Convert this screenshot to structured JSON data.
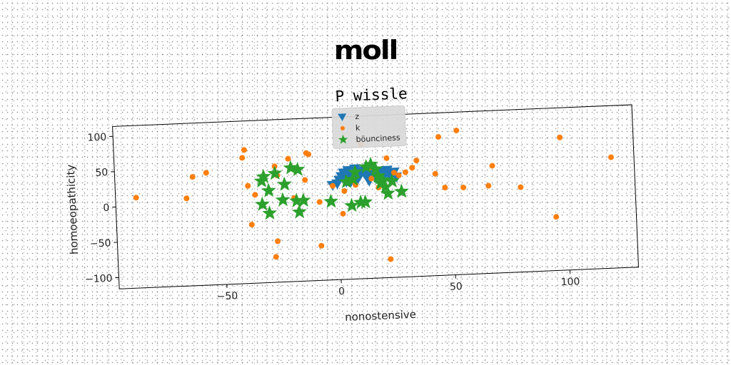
{
  "suptitle": "moll",
  "chart_data": {
    "type": "scatter",
    "title": "P wissle",
    "xlabel": "nonostensive",
    "ylabel": "homoeopathicity",
    "xlim": [
      -97,
      130
    ],
    "ylim": [
      -116,
      114
    ],
    "xticks": [
      -50,
      0,
      50,
      100
    ],
    "yticks": [
      -100,
      -50,
      0,
      50,
      100
    ],
    "xtick_labels": [
      "−50",
      "0",
      "50",
      "100"
    ],
    "ytick_labels": [
      "−100",
      "−50",
      "0",
      "50",
      "100"
    ],
    "grid": false,
    "legend_position": "upper center",
    "series": [
      {
        "name": "z",
        "marker": "triangle-down",
        "color": "#1f77b4",
        "points": [
          [
            -2,
            18
          ],
          [
            0,
            20
          ],
          [
            1,
            25
          ],
          [
            2,
            30
          ],
          [
            3,
            35
          ],
          [
            4,
            22
          ],
          [
            5,
            38
          ],
          [
            6,
            28
          ],
          [
            7,
            32
          ],
          [
            8,
            40
          ],
          [
            9,
            25
          ],
          [
            10,
            30
          ],
          [
            11,
            35
          ],
          [
            12,
            37
          ],
          [
            13,
            28
          ],
          [
            14,
            33
          ],
          [
            15,
            38
          ],
          [
            16,
            30
          ],
          [
            17,
            25
          ],
          [
            18,
            35
          ],
          [
            19,
            28
          ],
          [
            20,
            32
          ],
          [
            21,
            30
          ],
          [
            22,
            36
          ],
          [
            23,
            28
          ],
          [
            24,
            30
          ],
          [
            25,
            33
          ],
          [
            26,
            26
          ],
          [
            6,
            22
          ],
          [
            3,
            26
          ],
          [
            14,
            22
          ],
          [
            19,
            34
          ]
        ]
      },
      {
        "name": "k",
        "marker": "circle",
        "color": "#ff7f0e",
        "points": [
          [
            -88,
            12
          ],
          [
            -66,
            8
          ],
          [
            -63,
            38
          ],
          [
            -57,
            43
          ],
          [
            -41,
            62
          ],
          [
            -40,
            73
          ],
          [
            -39,
            22
          ],
          [
            -38,
            -33
          ],
          [
            -36,
            9
          ],
          [
            -27,
            -58
          ],
          [
            -28,
            -80
          ],
          [
            -27,
            48
          ],
          [
            -26,
            35
          ],
          [
            -21,
            58
          ],
          [
            -19,
            2
          ],
          [
            -15,
            -1
          ],
          [
            -13,
            65
          ],
          [
            -12,
            63
          ],
          [
            -14,
            27
          ],
          [
            -8,
            -67
          ],
          [
            -8,
            -5
          ],
          [
            -2,
            17
          ],
          [
            2,
            -23
          ],
          [
            3,
            9
          ],
          [
            7,
            23
          ],
          [
            8,
            17
          ],
          [
            11,
            74
          ],
          [
            13,
            42
          ],
          [
            14,
            43
          ],
          [
            15,
            41
          ],
          [
            22,
            -90
          ],
          [
            22,
            53
          ],
          [
            25,
            32
          ],
          [
            27,
            28
          ],
          [
            30,
            32
          ],
          [
            33,
            38
          ],
          [
            35,
            48
          ],
          [
            43,
            28
          ],
          [
            45,
            80
          ],
          [
            47,
            8
          ],
          [
            53,
            88
          ],
          [
            55,
            7
          ],
          [
            66,
            8
          ],
          [
            68,
            36
          ],
          [
            80,
            4
          ],
          [
            95,
            -40
          ],
          [
            98,
            72
          ],
          [
            120,
            41
          ],
          [
            15,
            25
          ],
          [
            18,
            12
          ]
        ]
      },
      {
        "name": "böunciness",
        "marker": "star",
        "color": "#2ca02c",
        "points": [
          [
            -33,
            28
          ],
          [
            -32,
            34
          ],
          [
            -30,
            14
          ],
          [
            -27,
            38
          ],
          [
            -23,
            22
          ],
          [
            -20,
            45
          ],
          [
            -17,
            42
          ],
          [
            -15,
            -2
          ],
          [
            -18,
            -2
          ],
          [
            -24,
            0
          ],
          [
            -33,
            -5
          ],
          [
            -30,
            -18
          ],
          [
            -17,
            -18
          ],
          [
            -3,
            -5
          ],
          [
            4,
            22
          ],
          [
            7,
            25
          ],
          [
            8,
            35
          ],
          [
            10,
            -8
          ],
          [
            12,
            -8
          ],
          [
            13,
            42
          ],
          [
            15,
            45
          ],
          [
            17,
            38
          ],
          [
            18,
            28
          ],
          [
            19,
            18
          ],
          [
            20,
            22
          ],
          [
            21,
            12
          ],
          [
            22,
            3
          ],
          [
            24,
            20
          ],
          [
            28,
            5
          ],
          [
            6,
            -12
          ]
        ]
      }
    ]
  }
}
